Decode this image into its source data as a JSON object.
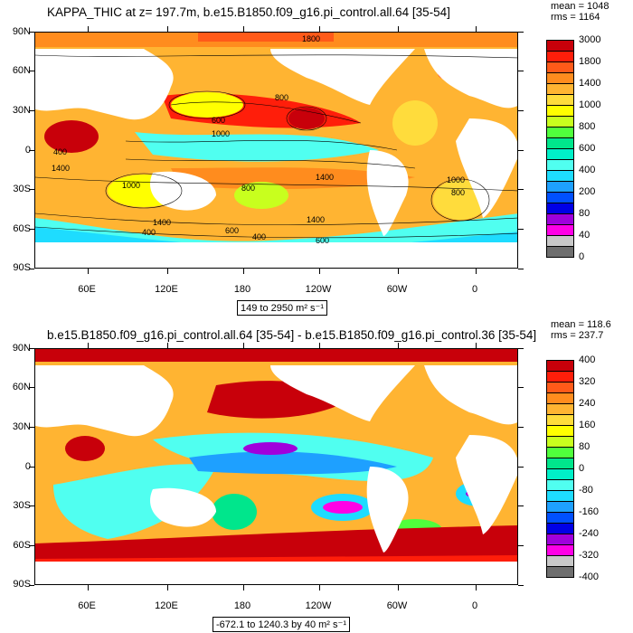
{
  "top": {
    "title": "KAPPA_THIC at z= 197.7m, b.e15.B1850.f09_g16.pi_control.all.64 [35-54]",
    "stats": [
      "mean = 1048",
      "rms = 1164"
    ],
    "range": "149 to 2950 m² s⁻¹",
    "colorbar_labels": [
      "3000",
      "1800",
      "1400",
      "1000",
      "800",
      "600",
      "400",
      "200",
      "80",
      "40",
      "0"
    ],
    "colorbar_colors": [
      "#c8000a",
      "#ff1e0a",
      "#ff5a19",
      "#ff8c1e",
      "#ffb432",
      "#ffdc3c",
      "#ffff00",
      "#c8ff1e",
      "#50ff3c",
      "#00e68c",
      "#00f0c8",
      "#50fff0",
      "#1edcff",
      "#1ea0ff",
      "#0050ff",
      "#0000e6",
      "#a000dc",
      "#ff00e6",
      "#c8c8c8",
      "#6e6e6e"
    ],
    "contour_labels": [
      "1800",
      "600",
      "1000",
      "1400",
      "400",
      "1000",
      "1400",
      "800",
      "1400",
      "400",
      "600",
      "800",
      "1400",
      "1000",
      "600",
      "800",
      "400"
    ]
  },
  "bottom": {
    "title": "b.e15.B1850.f09_g16.pi_control.all.64 [35-54] - b.e15.B1850.f09_g16.pi_control.36 [35-54]",
    "stats": [
      "mean = 118.6",
      "rms = 237.7"
    ],
    "range": "-672.1 to 1240.3 by 40 m² s⁻¹",
    "colorbar_labels": [
      "400",
      "320",
      "240",
      "160",
      "80",
      "0",
      "-80",
      "-160",
      "-240",
      "-320",
      "-400"
    ],
    "colorbar_colors": [
      "#c8000a",
      "#ff1e0a",
      "#ff5a19",
      "#ff8c1e",
      "#ffb432",
      "#ffdc3c",
      "#ffff00",
      "#c8ff1e",
      "#50ff3c",
      "#00e68c",
      "#00f0c8",
      "#50fff0",
      "#1edcff",
      "#1ea0ff",
      "#0050ff",
      "#0000e6",
      "#a000dc",
      "#ff00e6",
      "#c8c8c8",
      "#6e6e6e"
    ]
  },
  "lat_labels": [
    "90N",
    "60N",
    "30N",
    "0",
    "30S",
    "60S",
    "90S"
  ],
  "lon_labels": [
    "60E",
    "120E",
    "180",
    "120W",
    "60W",
    "0"
  ]
}
